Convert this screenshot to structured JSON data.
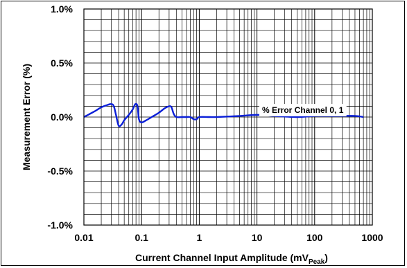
{
  "chart_data": {
    "type": "line",
    "title": "",
    "xlabel": "Current Channel Input Amplitude (mV",
    "xlabel_subscript": "Peak",
    "xlabel_close": ")",
    "ylabel": "Measurement Error (%)",
    "xscale": "log",
    "xlim": [
      0.01,
      1000
    ],
    "ylim": [
      -1.0,
      1.0
    ],
    "x_tick_labels": [
      "0.01",
      "0.1",
      "1",
      "10",
      "100",
      "1000"
    ],
    "x_ticks": [
      0.01,
      0.1,
      1,
      10,
      100,
      1000
    ],
    "y_tick_labels": [
      "1.0%",
      "0.5%",
      "0.0%",
      "-0.5%",
      "-1.0%"
    ],
    "y_ticks": [
      1.0,
      0.5,
      0.0,
      -0.5,
      -1.0
    ],
    "grid": true,
    "annotation": "% Error Channel 0, 1",
    "series": [
      {
        "name": "% Error Channel 0, 1",
        "color": "#0a1fd8",
        "x": [
          0.01,
          0.015,
          0.02,
          0.025,
          0.03,
          0.033,
          0.036,
          0.04,
          0.045,
          0.05,
          0.06,
          0.07,
          0.078,
          0.085,
          0.09,
          0.1,
          0.12,
          0.15,
          0.2,
          0.25,
          0.3,
          0.33,
          0.36,
          0.4,
          0.5,
          0.6,
          0.7,
          0.8,
          0.9,
          1.0,
          1.5,
          2,
          5,
          10,
          20,
          50,
          100,
          200,
          500,
          700
        ],
        "y": [
          0.0,
          0.05,
          0.09,
          0.11,
          0.12,
          0.1,
          0.02,
          -0.08,
          -0.07,
          -0.03,
          0.02,
          0.07,
          0.12,
          0.1,
          -0.02,
          -0.05,
          -0.03,
          0.0,
          0.04,
          0.08,
          0.1,
          0.09,
          0.03,
          0.0,
          0.0,
          0.0,
          0.0,
          -0.02,
          -0.02,
          0.0,
          0.0,
          0.0,
          0.01,
          0.02,
          0.01,
          0.0,
          0.01,
          0.01,
          0.01,
          0.0
        ]
      }
    ]
  }
}
